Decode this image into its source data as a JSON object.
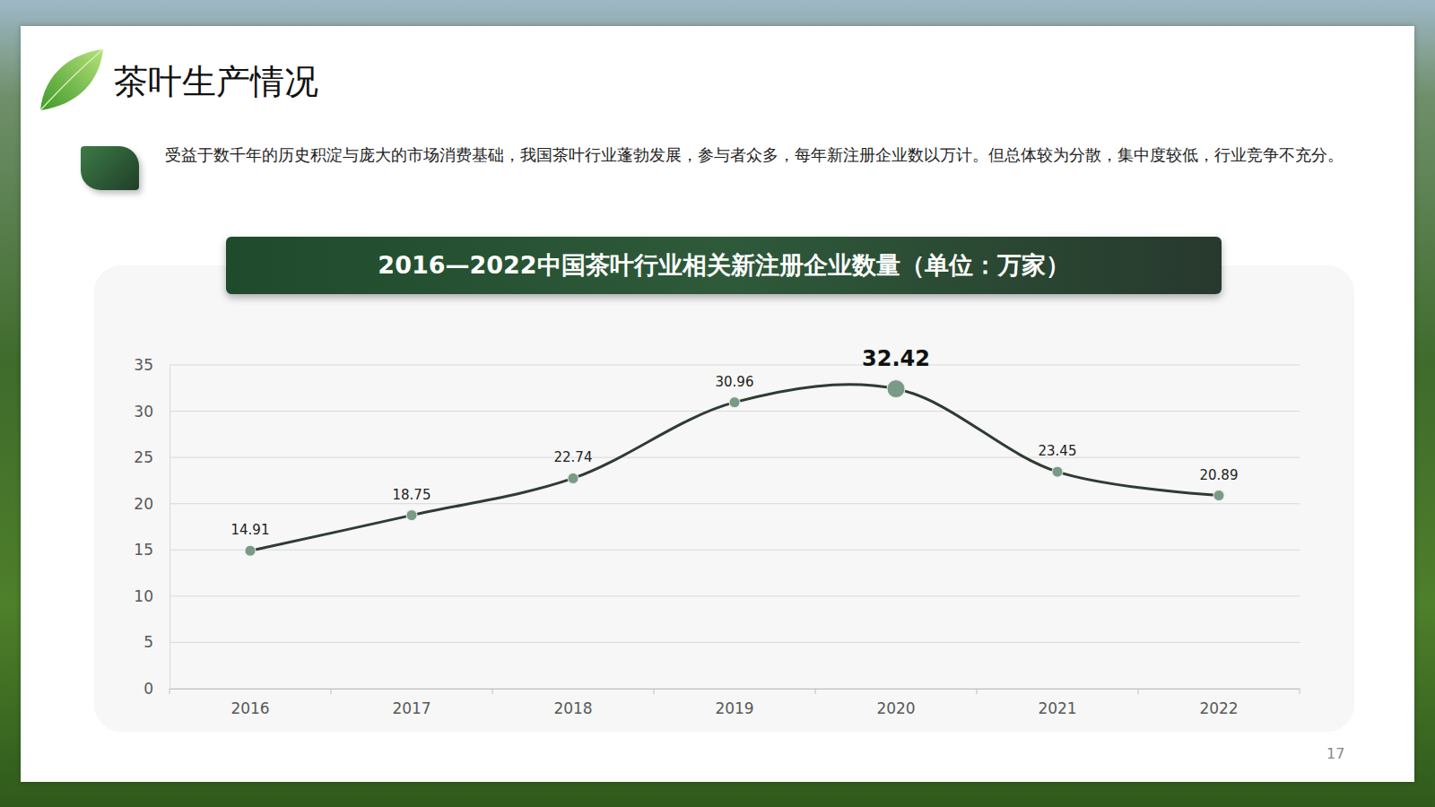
{
  "slide": {
    "title": "茶叶生产情况",
    "text": "受益于数千年的历史积淀与庞大的市场消费基础，我国茶叶行业蓬勃发展，参与者众多，每年新注册企业数以万计。但总体较为分散，集中度较低，行业竞争不充分。",
    "page_number": "17"
  },
  "chart_data": {
    "type": "line",
    "title": "2016—2022中国茶叶行业相关新注册企业数量（单位：万家）",
    "categories": [
      "2016",
      "2017",
      "2018",
      "2019",
      "2020",
      "2021",
      "2022"
    ],
    "values": [
      14.91,
      18.75,
      22.74,
      30.96,
      32.42,
      23.45,
      20.89
    ],
    "ylim": [
      0,
      35
    ],
    "yticks": [
      0,
      5,
      10,
      15,
      20,
      25,
      30,
      35
    ],
    "grid": true,
    "data_labels": true,
    "color": "#2f3b33",
    "marker": "circle"
  }
}
